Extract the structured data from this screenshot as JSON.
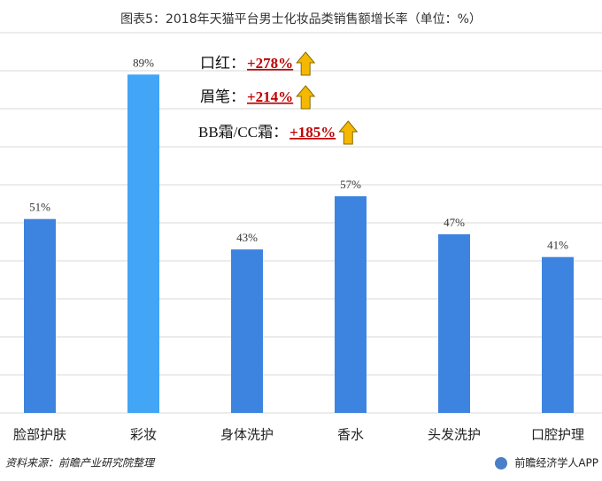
{
  "chart_data": {
    "type": "bar",
    "title": "图表5：2018年天猫平台男士化妆品类销售额增长率（单位：%）",
    "categories": [
      "脸部护肤",
      "彩妆",
      "身体洗护",
      "香水",
      "头发洗护",
      "口腔护理"
    ],
    "values": [
      51,
      89,
      43,
      57,
      47,
      41
    ],
    "value_labels": [
      "51%",
      "89%",
      "43%",
      "57%",
      "47%",
      "41%"
    ],
    "colors": [
      "#3d84e0",
      "#42a5f5",
      "#3d84e0",
      "#3d84e0",
      "#3d84e0",
      "#3d84e0"
    ],
    "ylim": [
      0,
      100
    ],
    "yticks": [
      0,
      10,
      20,
      30,
      40,
      50,
      60,
      70,
      80,
      90,
      100
    ],
    "grid": true,
    "annotations": [
      {
        "label": "口红：",
        "change": "+278%"
      },
      {
        "label": "眉笔：",
        "change": "+214%"
      },
      {
        "label": "BB霜/CC霜：",
        "change": "+185%"
      }
    ],
    "source": "资料来源：前瞻产业研究院整理",
    "footer": "前瞻经济学人APP"
  }
}
